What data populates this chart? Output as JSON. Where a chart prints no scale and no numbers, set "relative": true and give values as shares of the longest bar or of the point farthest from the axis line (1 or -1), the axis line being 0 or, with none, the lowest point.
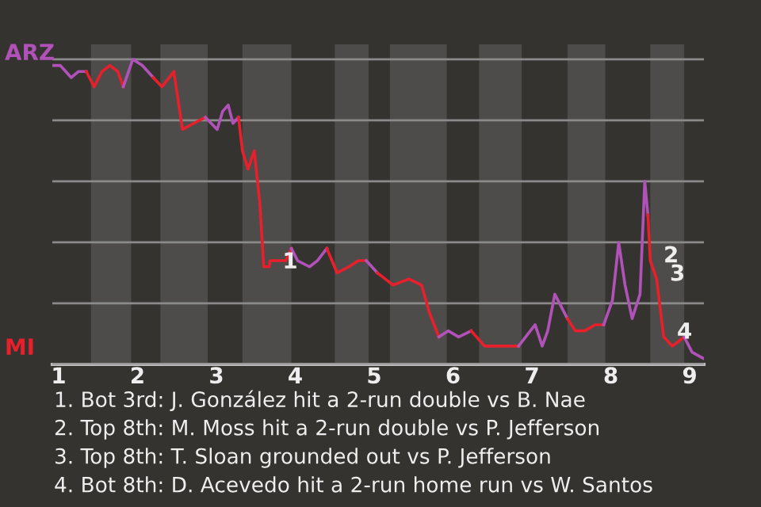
{
  "chart_data": {
    "type": "line",
    "relative": true,
    "series": [
      {
        "color": "#b152b9",
        "x": [
          0.92,
          1.02,
          1.16,
          1.25,
          1.35
        ],
        "values": [
          0.98,
          0.98,
          0.94,
          0.96,
          0.96
        ]
      },
      {
        "color": "#e8202c",
        "x": [
          1.35,
          1.45,
          1.55,
          1.65,
          1.75,
          1.82
        ],
        "values": [
          0.96,
          0.91,
          0.96,
          0.98,
          0.96,
          0.91
        ]
      },
      {
        "color": "#b152b9",
        "x": [
          1.82,
          1.94,
          2.06,
          2.2
        ],
        "values": [
          0.91,
          1,
          0.98,
          0.94
        ]
      },
      {
        "color": "#e8202c",
        "x": [
          2.2,
          2.31,
          2.46,
          2.57,
          2.71,
          2.86
        ],
        "values": [
          0.94,
          0.91,
          0.96,
          0.77,
          0.79,
          0.81
        ]
      },
      {
        "color": "#b152b9",
        "x": [
          2.86,
          3.01,
          3.08,
          3.15,
          3.21,
          3.28
        ],
        "values": [
          0.81,
          0.77,
          0.83,
          0.85,
          0.79,
          0.81
        ]
      },
      {
        "color": "#e8202c",
        "x": [
          3.28,
          3.33,
          3.4,
          3.48,
          3.55,
          3.6,
          3.67,
          3.68,
          3.76,
          3.88,
          3.95
        ],
        "values": [
          0.81,
          0.7,
          0.64,
          0.7,
          0.53,
          0.32,
          0.32,
          0.34,
          0.34,
          0.34,
          0.38
        ]
      },
      {
        "color": "#b152b9",
        "x": [
          3.95,
          4.03,
          4.18,
          4.28,
          4.4
        ],
        "values": [
          0.38,
          0.34,
          0.32,
          0.34,
          0.38
        ]
      },
      {
        "color": "#e8202c",
        "x": [
          4.4,
          4.53,
          4.68,
          4.8,
          4.9
        ],
        "values": [
          0.38,
          0.3,
          0.32,
          0.34,
          0.34
        ]
      },
      {
        "color": "#b152b9",
        "x": [
          4.9,
          5.04
        ],
        "values": [
          0.34,
          0.3
        ]
      },
      {
        "color": "#e8202c",
        "x": [
          5.04,
          5.24,
          5.44,
          5.6,
          5.7,
          5.82
        ],
        "values": [
          0.3,
          0.26,
          0.28,
          0.26,
          0.17,
          0.09
        ]
      },
      {
        "color": "#b152b9",
        "x": [
          5.82,
          5.94,
          6.07,
          6.23
        ],
        "values": [
          0.09,
          0.11,
          0.09,
          0.11
        ]
      },
      {
        "color": "#e8202c",
        "x": [
          6.23,
          6.4,
          6.83
        ],
        "values": [
          0.11,
          0.06,
          0.06
        ]
      },
      {
        "color": "#b152b9",
        "x": [
          6.83,
          7.04,
          7.13,
          7.2,
          7.29,
          7.45
        ],
        "values": [
          0.06,
          0.13,
          0.06,
          0.11,
          0.23,
          0.15
        ]
      },
      {
        "color": "#e8202c",
        "x": [
          7.45,
          7.55,
          7.67,
          7.8,
          7.91
        ],
        "values": [
          0.15,
          0.11,
          0.11,
          0.13,
          0.13
        ]
      },
      {
        "color": "#b152b9",
        "x": [
          7.91,
          8.02,
          8.1,
          8.18,
          8.27,
          8.37,
          8.43,
          8.47
        ],
        "values": [
          0.13,
          0.21,
          0.4,
          0.26,
          0.15,
          0.23,
          0.6,
          0.49
        ]
      },
      {
        "color": "#e8202c",
        "x": [
          8.47,
          8.5,
          8.58,
          8.67,
          8.78,
          8.93
        ],
        "values": [
          0.49,
          0.34,
          0.28,
          0.09,
          0.06,
          0.09
        ]
      },
      {
        "color": "#b152b9",
        "x": [
          8.93,
          9.03,
          9.17
        ],
        "values": [
          0.09,
          0.04,
          0.02
        ]
      }
    ],
    "xlim": [
      0.92,
      9.18
    ],
    "xticks": [
      1,
      2,
      3,
      4,
      5,
      6,
      7,
      8,
      9
    ],
    "tick_labels": "x",
    "grid": "y",
    "bands": [
      {
        "axis": "x",
        "from": 1.41,
        "to": 1.92,
        "color": "#4d4c4a"
      },
      {
        "axis": "x",
        "from": 2.29,
        "to": 2.89,
        "color": "#4d4c4a"
      },
      {
        "axis": "x",
        "from": 3.33,
        "to": 3.95,
        "color": "#4d4c4a"
      },
      {
        "axis": "x",
        "from": 4.5,
        "to": 4.93,
        "color": "#4d4c4a"
      },
      {
        "axis": "x",
        "from": 5.2,
        "to": 5.92,
        "color": "#4d4c4a"
      },
      {
        "axis": "x",
        "from": 6.33,
        "to": 6.87,
        "color": "#4d4c4a"
      },
      {
        "axis": "x",
        "from": 7.45,
        "to": 7.93,
        "color": "#4d4c4a"
      },
      {
        "axis": "x",
        "from": 8.5,
        "to": 8.93,
        "color": "#4d4c4a"
      }
    ],
    "annotations": [
      "ARZ",
      "MI",
      {
        "text": "1",
        "x": 3.67,
        "y": 0.32
      },
      {
        "text": "2",
        "x": 8.5,
        "y": 0.34
      },
      {
        "text": "3",
        "x": 8.58,
        "y": 0.28
      },
      {
        "text": "4",
        "x": 8.67,
        "y": 0.09
      },
      "1. Bot 3rd: J. González hit a 2-run double vs B. Nae",
      "2. Top 8th: M. Moss hit a 2-run double vs P. Jefferson",
      "3. Top 8th: T. Sloan grounded out vs P. Jefferson",
      "4. Bot 8th: D. Acevedo hit a 2-run home run vs W. Santos"
    ]
  }
}
